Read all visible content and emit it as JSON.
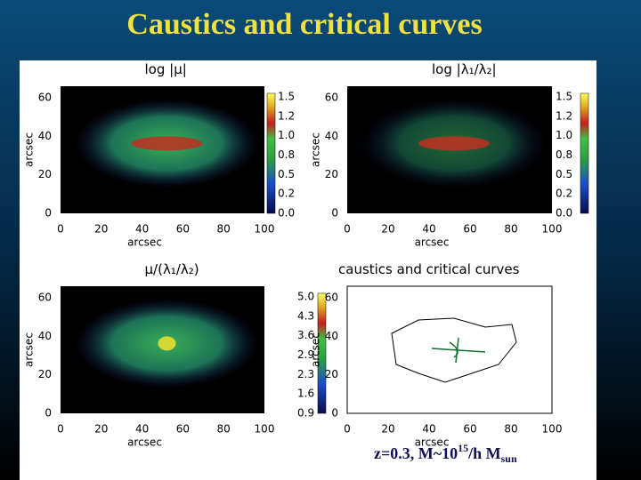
{
  "title": "Caustics and critical curves",
  "panels": [
    {
      "title": "log |μ|",
      "xlabel": "arcsec",
      "ylabel": "arcsec",
      "xticks": [
        "0",
        "20",
        "40",
        "60",
        "80",
        "100"
      ],
      "yticks": [
        "60",
        "40",
        "20",
        "0"
      ],
      "colorbar": [
        "1.5",
        "1.2",
        "1.0",
        "0.8",
        "0.5",
        "0.2",
        "0.0"
      ]
    },
    {
      "title": "log |λ₁/λ₂|",
      "xlabel": "arcsec",
      "ylabel": "arcsec",
      "xticks": [
        "0",
        "20",
        "40",
        "60",
        "80",
        "100"
      ],
      "yticks": [
        "60",
        "40",
        "20",
        "0"
      ],
      "colorbar": [
        "1.5",
        "1.2",
        "1.0",
        "0.8",
        "0.5",
        "0.2",
        "0.0"
      ]
    },
    {
      "title": "μ/(λ₁/λ₂)",
      "xlabel": "arcsec",
      "ylabel": "arcsec",
      "xticks": [
        "0",
        "20",
        "40",
        "60",
        "80",
        "100"
      ],
      "yticks": [
        "60",
        "40",
        "20",
        "0"
      ],
      "colorbar": [
        "5.0",
        "4.3",
        "3.6",
        "2.9",
        "2.3",
        "1.6",
        "0.9"
      ]
    },
    {
      "title": "caustics and critical curves",
      "xlabel": "arcsec",
      "ylabel": "arcsec",
      "xticks": [
        "0",
        "20",
        "40",
        "60",
        "80",
        "100"
      ],
      "yticks": [
        "60",
        "40",
        "20",
        "0"
      ]
    }
  ],
  "caption": {
    "text": "z=0.3, M~10",
    "exponent": "15",
    "unit": "/h M",
    "subscript": "sun"
  }
}
